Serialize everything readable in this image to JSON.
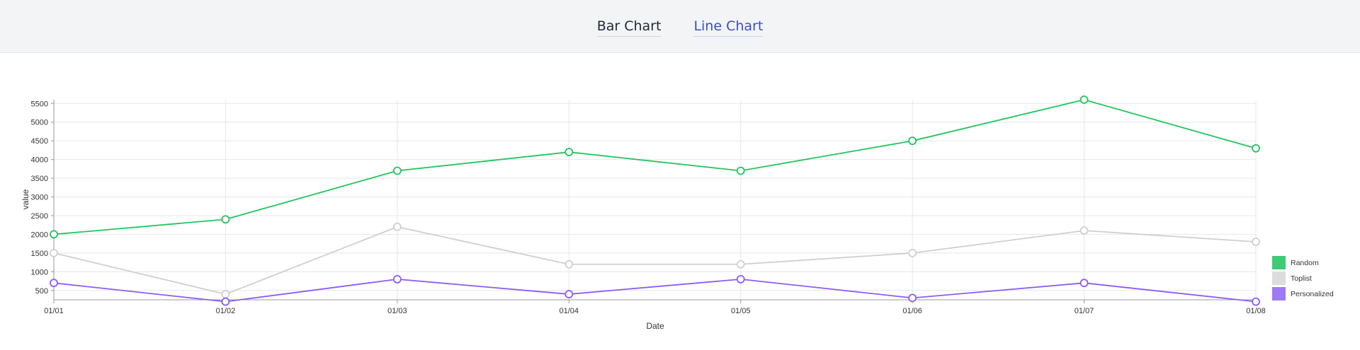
{
  "tabs": [
    {
      "label": "Bar Chart",
      "active": false
    },
    {
      "label": "Line Chart",
      "active": true
    }
  ],
  "chart_data": {
    "type": "line",
    "xlabel": "Date",
    "ylabel": "value",
    "x": [
      "01/01",
      "01/02",
      "01/03",
      "01/04",
      "01/05",
      "01/06",
      "01/07",
      "01/08"
    ],
    "yticks": [
      500,
      1000,
      1500,
      2000,
      2500,
      3000,
      3500,
      4000,
      4500,
      5000,
      5500
    ],
    "ylim": [
      250,
      5600
    ],
    "grid": true,
    "legend_position": "bottom-right",
    "series": [
      {
        "name": "Random",
        "color": "#22c55e",
        "legend_color": "#3ecb75",
        "values": [
          2000,
          2400,
          3700,
          4200,
          3700,
          4500,
          5600,
          4300
        ]
      },
      {
        "name": "Toplist",
        "color": "#cfcfd2",
        "legend_color": "#dcdcdc",
        "values": [
          1500,
          400,
          2200,
          1200,
          1200,
          1500,
          2100,
          1800
        ]
      },
      {
        "name": "Personalized",
        "color": "#8b5cf6",
        "legend_color": "#9d7af6",
        "values": [
          700,
          200,
          800,
          400,
          800,
          300,
          700,
          200
        ]
      }
    ]
  }
}
